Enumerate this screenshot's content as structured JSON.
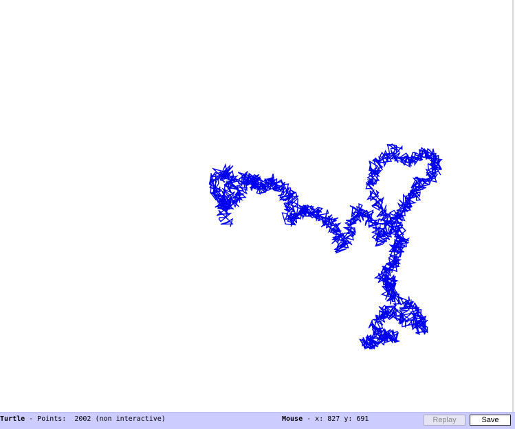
{
  "canvas": {
    "background": "#ffffff",
    "path_color": "#0000ee",
    "point_count": 2002
  },
  "status_bar": {
    "title": "Turtle",
    "points_text": " - Points:  2002 (non interactive)",
    "mouse_label": "Mouse",
    "mouse_text": " - x: 827 y: 691",
    "background": "#ccccff"
  },
  "buttons": {
    "replay_label": "Replay",
    "replay_enabled": false,
    "save_label": "Save"
  }
}
